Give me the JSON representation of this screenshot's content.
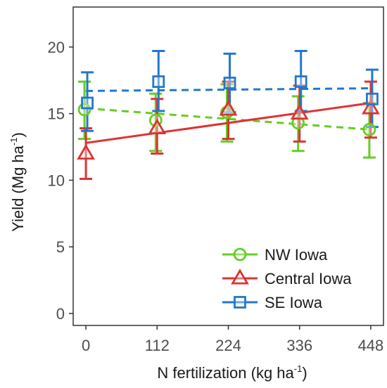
{
  "chart_data": {
    "type": "line",
    "xlabel_main": "N fertilization  (kg ha",
    "xlabel_sup": "-1",
    "xlabel_end": ")",
    "ylabel_main": "Yield (Mg ha",
    "ylabel_sup": "-1",
    "ylabel_end": ")",
    "x": [
      0,
      112,
      224,
      336,
      448
    ],
    "x_tick_labels": [
      "0",
      "112",
      "224",
      "336",
      "448"
    ],
    "y_ticks": [
      0,
      5,
      10,
      15,
      20
    ],
    "y_tick_labels": [
      "0",
      "5",
      "10",
      "15",
      "20"
    ],
    "ylim": [
      -0.9,
      23.0
    ],
    "xlim": [
      -20,
      468
    ],
    "grid": false,
    "legend_position": "bottom-right",
    "series": [
      {
        "name": "NW Iowa",
        "color": "#66cc22",
        "marker": "circle",
        "values": [
          15.3,
          14.5,
          15.1,
          14.3,
          13.8
        ],
        "error_low": [
          13.1,
          12.2,
          12.9,
          12.2,
          11.7
        ],
        "error_high": [
          17.4,
          16.5,
          17.2,
          16.3,
          15.8
        ],
        "fit": [
          15.4,
          13.8
        ],
        "fit_style": "dashed"
      },
      {
        "name": "Central Iowa",
        "color": "#dd3333",
        "marker": "triangle",
        "values": [
          12.0,
          13.9,
          15.3,
          15.0,
          15.4
        ],
        "error_low": [
          10.1,
          12.0,
          13.1,
          12.9,
          13.2
        ],
        "error_high": [
          13.9,
          16.1,
          17.4,
          17.1,
          17.4
        ],
        "fit": [
          12.8,
          15.8
        ],
        "fit_style": "solid"
      },
      {
        "name": "SE Iowa",
        "color": "#2277cc",
        "marker": "square",
        "values": [
          15.8,
          17.4,
          17.3,
          17.4,
          16.1
        ],
        "error_low": [
          13.7,
          15.2,
          15.1,
          15.2,
          14.0
        ],
        "error_high": [
          18.1,
          19.7,
          19.5,
          19.7,
          18.3
        ],
        "fit": [
          16.7,
          16.9
        ],
        "fit_style": "dashed"
      }
    ]
  }
}
